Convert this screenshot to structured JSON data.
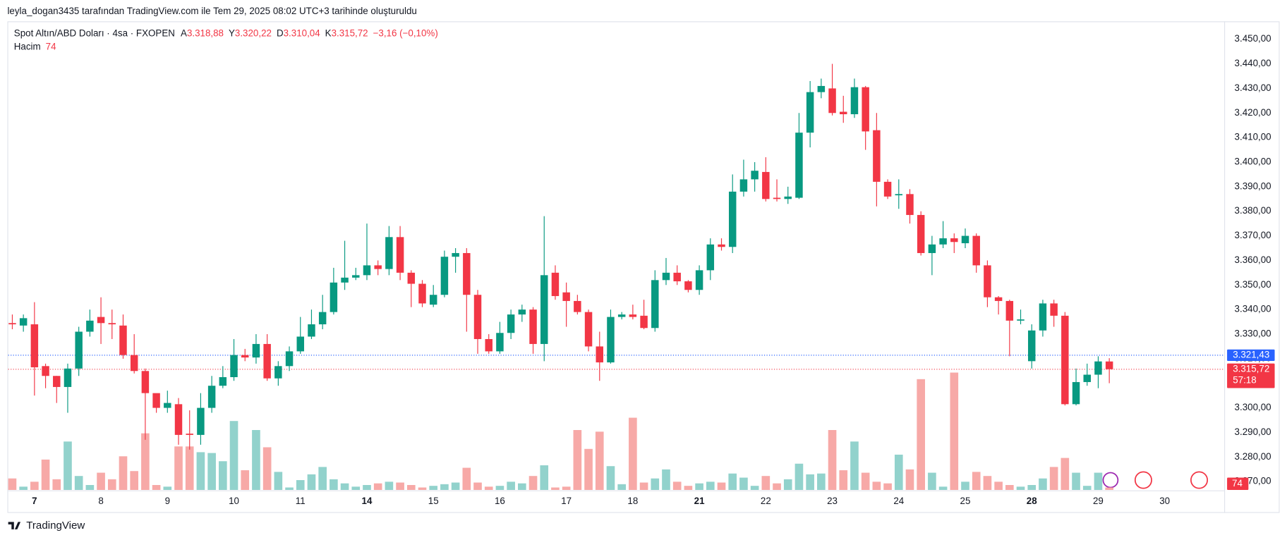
{
  "header": {
    "credit": "leyla_dogan3435 tarafından TradingView.com ile Tem 29, 2025 08:02 UTC+3 tarihinde oluşturuldu",
    "footer": "TradingView"
  },
  "chart_data": {
    "type": "candlestick",
    "title": "Spot Altın/ABD Doları · 4sa · FXOPEN",
    "ohlc_legend": [
      {
        "key": "A",
        "value": "3.318,88"
      },
      {
        "key": "Y",
        "value": "3.320,22"
      },
      {
        "key": "D",
        "value": "3.310,04"
      },
      {
        "key": "K",
        "value": "3.315,72"
      }
    ],
    "change": "−3,16 (−0,10%)",
    "volume_title": "Hacim",
    "categories": [
      null,
      null,
      "7",
      null,
      null,
      null,
      null,
      null,
      "8",
      null,
      null,
      null,
      null,
      null,
      "9",
      null,
      null,
      null,
      null,
      null,
      "10",
      null,
      null,
      null,
      null,
      null,
      "11",
      null,
      null,
      null,
      null,
      null,
      "14",
      null,
      null,
      null,
      null,
      null,
      "15",
      null,
      null,
      null,
      null,
      null,
      "16",
      null,
      null,
      null,
      null,
      null,
      "17",
      null,
      null,
      null,
      null,
      null,
      "18",
      null,
      null,
      null,
      null,
      null,
      "21",
      null,
      null,
      null,
      null,
      null,
      "22",
      null,
      null,
      null,
      null,
      null,
      "23",
      null,
      null,
      null,
      null,
      null,
      "24",
      null,
      null,
      null,
      null,
      null,
      "25",
      null,
      null,
      null,
      null,
      null,
      "28",
      null,
      null,
      null,
      null,
      null,
      "29",
      null
    ],
    "future_categories": [
      "30"
    ],
    "open": [
      3334.5,
      3333.5,
      3334,
      3317,
      3313,
      3308.5,
      3316,
      3331,
      3337,
      3334.5,
      3333.5,
      3321.5,
      3315,
      3306,
      3300,
      3301.5,
      3289.5,
      3289,
      3300,
      3309,
      3312.5,
      3321.5,
      3320.5,
      3326,
      3312,
      3317,
      3323,
      3329,
      3334,
      3339,
      3351,
      3353,
      3354,
      3358,
      3356.5,
      3369.5,
      3355,
      3350.5,
      3342,
      3346,
      3361.5,
      3363,
      3346,
      3328,
      3323,
      3330.5,
      3338,
      3340,
      3326,
      3355,
      3347,
      3343.5,
      3339,
      3325,
      3318.5,
      3337,
      3338,
      3337.5,
      3332.5,
      3352,
      3355,
      3351.5,
      3348,
      3356,
      3366.5,
      3365.5,
      3388,
      3393,
      3396,
      3385.5,
      3385,
      3385.5,
      3412,
      3428.5,
      3430,
      3420.5,
      3419.5,
      3430.5,
      3413,
      3392,
      3386.5,
      3387,
      3378.5,
      3363,
      3366.5,
      3369,
      3367,
      3370,
      3358,
      3345,
      3343.5,
      3335.5,
      3319,
      3331.5,
      3342.5,
      3337.5,
      3301.5,
      3310.5,
      3313.5,
      3318.88
    ],
    "high": [
      3338,
      3338,
      3343,
      3318,
      3313,
      3318,
      3333,
      3340,
      3345,
      3340,
      3338,
      3330,
      3316,
      3305,
      3307,
      3304,
      3299,
      3306,
      3313,
      3317,
      3328,
      3324,
      3330,
      3330,
      3319,
      3325,
      3337,
      3340,
      3346,
      3357,
      3368,
      3357,
      3375,
      3360,
      3374,
      3374,
      3356,
      3352,
      3350,
      3364,
      3365,
      3365,
      3348,
      3330,
      3335,
      3340,
      3342,
      3341,
      3378,
      3358,
      3351,
      3346,
      3340,
      3331,
      3340,
      3339,
      3342,
      3344,
      3356,
      3361,
      3358,
      3352,
      3358,
      3369,
      3369,
      3395,
      3401,
      3400,
      3402,
      3393,
      3390,
      3420,
      3433,
      3434,
      3440,
      3427,
      3434,
      3431,
      3420,
      3393,
      3393,
      3389,
      3380,
      3370,
      3376,
      3371,
      3373,
      3371,
      3360,
      3345.5,
      3344,
      3340,
      3334,
      3344,
      3344,
      3339,
      3316,
      3318,
      3321,
      3320.22
    ],
    "low": [
      3332,
      3331,
      3305,
      3308,
      3302,
      3298,
      3313,
      3329,
      3326,
      3328,
      3320,
      3314,
      3287,
      3298,
      3298,
      3285,
      3283,
      3285,
      3298,
      3308,
      3311,
      3319,
      3318,
      3311,
      3309,
      3315,
      3322,
      3328,
      3332,
      3338,
      3348,
      3352,
      3352,
      3354,
      3354,
      3352,
      3341,
      3341,
      3341,
      3345,
      3355,
      3331,
      3322,
      3322,
      3322,
      3328,
      3335,
      3322,
      3319,
      3344,
      3333,
      3338,
      3323,
      3311,
      3318,
      3336,
      3336,
      3332,
      3331,
      3350,
      3350,
      3347,
      3346,
      3352,
      3364,
      3363,
      3386,
      3388,
      3384,
      3384,
      3383,
      3385,
      3406,
      3426,
      3419,
      3416,
      3418,
      3405,
      3382,
      3385,
      3381,
      3375,
      3362,
      3354,
      3365,
      3363,
      3365,
      3355,
      3341,
      3338,
      3321,
      3334,
      3316,
      3329,
      3333,
      3301,
      3301,
      3309,
      3308,
      3310.04
    ],
    "close": [
      3334,
      3336.5,
      3316.5,
      3313,
      3308.5,
      3316,
      3331,
      3335.5,
      3334.5,
      3334,
      3321.5,
      3315,
      3306,
      3300,
      3302,
      3289,
      3289,
      3300,
      3309,
      3312.5,
      3321.5,
      3320.5,
      3326,
      3312,
      3317,
      3323,
      3329,
      3334,
      3339,
      3351,
      3353,
      3354,
      3358,
      3356.5,
      3369.5,
      3355,
      3350.5,
      3342.5,
      3346,
      3361.5,
      3363,
      3346,
      3328,
      3323,
      3330.5,
      3338,
      3340,
      3326,
      3354,
      3345.5,
      3343.5,
      3339,
      3325,
      3318.5,
      3337,
      3338,
      3337,
      3332.5,
      3352,
      3355,
      3351.5,
      3348,
      3356,
      3366.5,
      3365.5,
      3388,
      3393,
      3396.5,
      3385,
      3385,
      3386,
      3412,
      3428.5,
      3431,
      3420,
      3419.5,
      3430.5,
      3412.5,
      3392,
      3386,
      3387,
      3378.5,
      3363,
      3366.5,
      3369,
      3367.5,
      3370,
      3358,
      3345,
      3343.5,
      3335.5,
      3336,
      3331.5,
      3342.5,
      3337.5,
      3301.5,
      3310.5,
      3313.5,
      3318.9,
      3315.72
    ],
    "volume": [
      350,
      100,
      250,
      925,
      325,
      1475,
      425,
      150,
      525,
      325,
      1025,
      575,
      1725,
      150,
      100,
      1325,
      1325,
      1150,
      1125,
      875,
      2100,
      600,
      1825,
      1300,
      550,
      75,
      300,
      475,
      700,
      325,
      200,
      100,
      150,
      200,
      250,
      225,
      150,
      75,
      125,
      175,
      225,
      675,
      225,
      100,
      125,
      250,
      200,
      425,
      750,
      75,
      100,
      1825,
      1250,
      1775,
      725,
      175,
      2200,
      225,
      350,
      625,
      250,
      125,
      200,
      250,
      225,
      500,
      375,
      125,
      425,
      200,
      325,
      800,
      475,
      500,
      1825,
      600,
      1475,
      525,
      250,
      200,
      1075,
      625,
      3375,
      525,
      100,
      3575,
      250,
      550,
      425,
      250,
      150,
      100,
      150,
      350,
      700,
      975,
      525,
      125,
      525,
      74
    ],
    "ylim": [
      3266.6,
      3457.3
    ],
    "yticks": [
      {
        "value": 3270,
        "label": "3.270,00"
      },
      {
        "value": 3280,
        "label": "3.280,00"
      },
      {
        "value": 3290,
        "label": "3.290,00"
      },
      {
        "value": 3300,
        "label": "3.300,00"
      },
      {
        "value": 3310,
        "label": "3.310,00"
      },
      {
        "value": 3320,
        "label": "3.320,00"
      },
      {
        "value": 3330,
        "label": "3.330,00"
      },
      {
        "value": 3340,
        "label": "3.340,00"
      },
      {
        "value": 3350,
        "label": "3.350,00"
      },
      {
        "value": 3360,
        "label": "3.360,00"
      },
      {
        "value": 3370,
        "label": "3.370,00"
      },
      {
        "value": 3380,
        "label": "3.380,00"
      },
      {
        "value": 3390,
        "label": "3.390,00"
      },
      {
        "value": 3400,
        "label": "3.400,00"
      },
      {
        "value": 3410,
        "label": "3.410,00"
      },
      {
        "value": 3420,
        "label": "3.420,00"
      },
      {
        "value": 3430,
        "label": "3.430,00"
      },
      {
        "value": 3440,
        "label": "3.440,00"
      },
      {
        "value": 3450,
        "label": "3.450,00"
      }
    ],
    "price_lines": [
      {
        "value": 3321.43,
        "label": "3.321,43",
        "color": "#2962ff"
      },
      {
        "value": 3315.72,
        "label": "3.315,72",
        "color": "#f23645"
      }
    ],
    "countdown": "57:18",
    "up_color": "#089981",
    "down_color": "#f23645",
    "up_volume_color": "#92d2cc",
    "down_volume_color": "#f7a9a7",
    "grid": false
  }
}
